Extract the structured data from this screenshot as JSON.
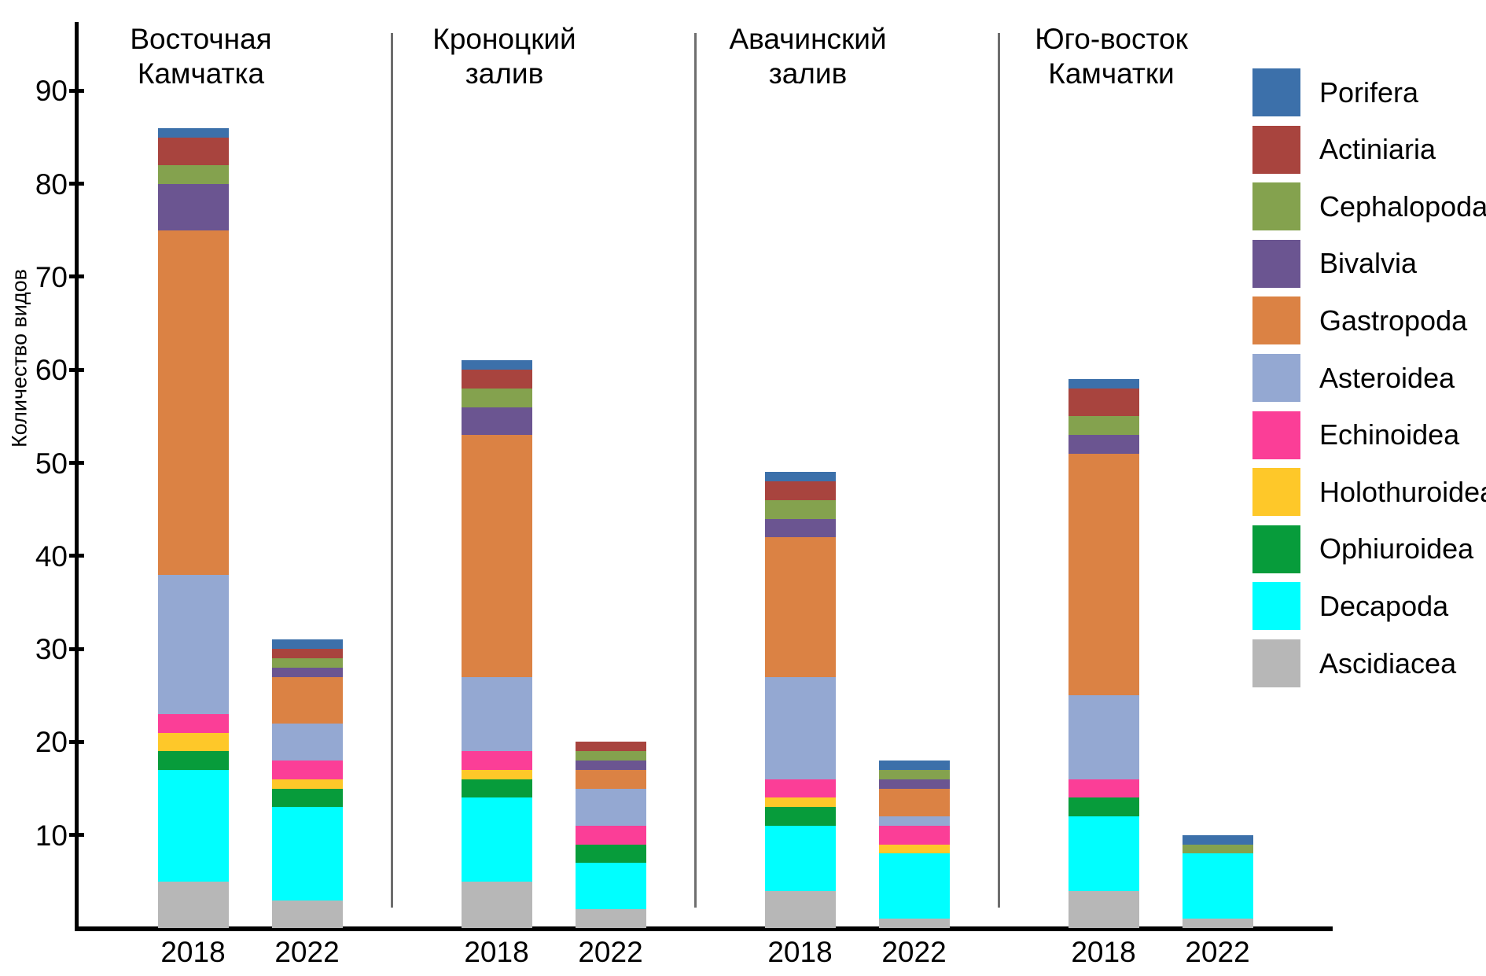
{
  "y_axis": {
    "title": "Количество видов",
    "tick_labels": [
      "10",
      "20",
      "30",
      "40",
      "50",
      "60",
      "70",
      "80",
      "90"
    ]
  },
  "chart_data": {
    "type": "bar",
    "stacked": true,
    "ylabel": "Количество видов",
    "ylim": [
      0,
      97
    ],
    "yticks": [
      10,
      20,
      30,
      40,
      50,
      60,
      70,
      80,
      90
    ],
    "grid": false,
    "legend_position": "right",
    "stack_order_bottom_to_top": [
      "Ascidiacea",
      "Decapoda",
      "Ophiuroidea",
      "Holothuroidea",
      "Echinoidea",
      "Asteroidea",
      "Gastropoda",
      "Bivalvia",
      "Cephalopoda",
      "Actiniaria",
      "Porifera"
    ],
    "groups": [
      {
        "title_lines": [
          "Восточная",
          "Камчатка"
        ],
        "categories": [
          "2018",
          "2022"
        ]
      },
      {
        "title_lines": [
          "Кроноцкий",
          "залив"
        ],
        "categories": [
          "2018",
          "2022"
        ]
      },
      {
        "title_lines": [
          "Авачинский",
          "залив"
        ],
        "categories": [
          "2018",
          "2022"
        ]
      },
      {
        "title_lines": [
          "Юго-восток",
          "Камчатки"
        ],
        "categories": [
          "2018",
          "2022"
        ]
      }
    ],
    "bar_order": [
      "Восточная Камчатка 2018",
      "Восточная Камчатка 2022",
      "Кроноцкий залив 2018",
      "Кроноцкий залив 2022",
      "Авачинский залив 2018",
      "Авачинский залив 2022",
      "Юго-восток Камчатки 2018",
      "Юго-восток Камчатки 2022"
    ],
    "series": [
      {
        "name": "Porifera",
        "color": "#3C70AA",
        "values": [
          1,
          1,
          1,
          0,
          1,
          1,
          1,
          1
        ]
      },
      {
        "name": "Actiniaria",
        "color": "#A8443E",
        "values": [
          3,
          1,
          2,
          1,
          2,
          0,
          3,
          0
        ]
      },
      {
        "name": "Cephalopoda",
        "color": "#84A24E",
        "values": [
          2,
          1,
          2,
          1,
          2,
          1,
          2,
          1
        ]
      },
      {
        "name": "Bivalvia",
        "color": "#6B5591",
        "values": [
          5,
          1,
          3,
          1,
          2,
          1,
          2,
          0
        ]
      },
      {
        "name": "Gastropoda",
        "color": "#DB8244",
        "values": [
          37,
          5,
          26,
          2,
          15,
          3,
          26,
          0
        ]
      },
      {
        "name": "Asteroidea",
        "color": "#94A8D2",
        "values": [
          15,
          4,
          8,
          4,
          11,
          1,
          9,
          0
        ]
      },
      {
        "name": "Echinoidea",
        "color": "#FB3E97",
        "values": [
          2,
          2,
          2,
          2,
          2,
          2,
          2,
          0
        ]
      },
      {
        "name": "Holothuroidea",
        "color": "#FEC829",
        "values": [
          2,
          1,
          1,
          0,
          1,
          1,
          0,
          0
        ]
      },
      {
        "name": "Ophiuroidea",
        "color": "#079C3B",
        "values": [
          2,
          2,
          2,
          2,
          2,
          0,
          2,
          0
        ]
      },
      {
        "name": "Decapoda",
        "color": "#00FFFF",
        "values": [
          12,
          10,
          9,
          5,
          7,
          7,
          8,
          7
        ]
      },
      {
        "name": "Ascidiacea",
        "color": "#B7B7B7",
        "values": [
          5,
          3,
          5,
          2,
          4,
          1,
          4,
          1
        ]
      }
    ],
    "totals": [
      86,
      31,
      61,
      20,
      49,
      18,
      59,
      10
    ]
  },
  "style": {
    "axis_color": "#000000",
    "separator_color": "#6E6E6E",
    "background": "#FFFFFF"
  }
}
